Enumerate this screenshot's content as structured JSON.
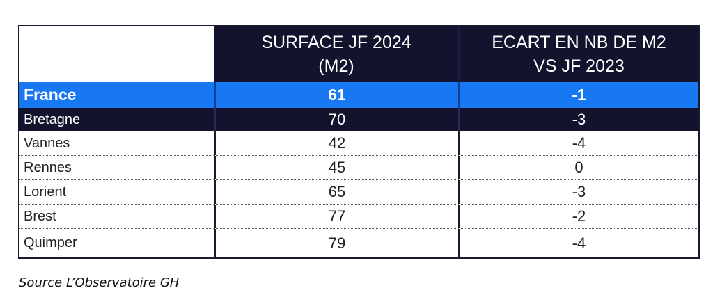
{
  "table": {
    "headers": {
      "surface": "SURFACE JF 2024\n(M2)",
      "ecart": "ECART EN NB DE M2\nVS JF 2023"
    },
    "rows": [
      {
        "name": "France",
        "surface": "61",
        "ecart": "-1"
      },
      {
        "name": "Bretagne",
        "surface": "70",
        "ecart": "-3"
      },
      {
        "name": "Vannes",
        "surface": "42",
        "ecart": "-4"
      },
      {
        "name": "Rennes",
        "surface": "45",
        "ecart": "0"
      },
      {
        "name": "Lorient",
        "surface": "65",
        "ecart": "-3"
      },
      {
        "name": "Brest",
        "surface": "77",
        "ecart": "-2"
      },
      {
        "name": "Quimper",
        "surface": "79",
        "ecart": "-4"
      }
    ]
  },
  "source": "Source L’Observatoire GH",
  "colors": {
    "header_bg": "#13132d",
    "highlight_row": "#1877f2"
  }
}
